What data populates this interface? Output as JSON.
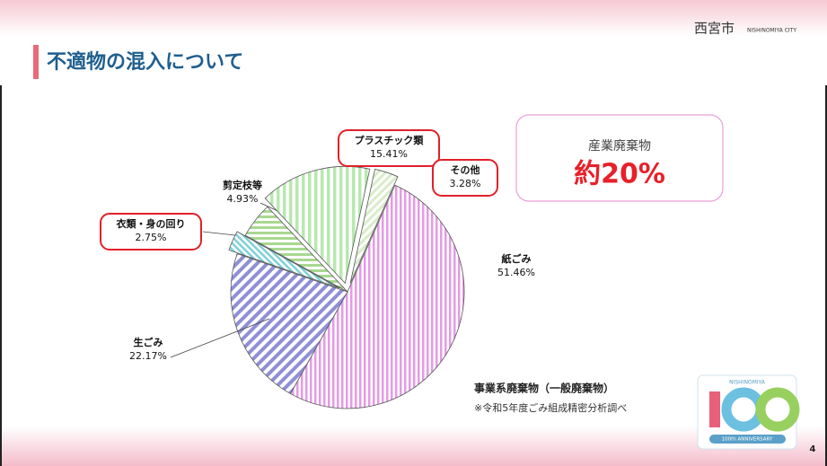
{
  "header": {
    "title": "不適物の混入について",
    "city": "西宮市",
    "city_en": "NISHINOMIYA CITY"
  },
  "callout": {
    "label": "産業廃棄物",
    "value": "約20%"
  },
  "footnote": {
    "title": "事業系廃棄物（一般廃棄物）",
    "source": "※令和5年度ごみ組成精密分析調べ"
  },
  "logo": {
    "top": "NISHINOMIYA",
    "bottom": "100th ANNIVERSARY"
  },
  "page_number": "4",
  "chart_data": {
    "type": "pie",
    "categories": [
      "紙ごみ",
      "生ごみ",
      "衣類・身の回り",
      "剪定枝等",
      "プラスチック類",
      "その他"
    ],
    "values": [
      51.46,
      22.17,
      2.75,
      4.93,
      15.41,
      3.28
    ],
    "value_labels": [
      "51.46%",
      "22.17%",
      "2.75%",
      "4.93%",
      "15.41%",
      "3.28%"
    ],
    "colors": [
      "#e59be5",
      "#8f8fd8",
      "#7fd0d8",
      "#a8d890",
      "#b8e8b0",
      "#d8ecc8"
    ],
    "exploded": [
      false,
      false,
      true,
      false,
      true,
      true
    ]
  }
}
